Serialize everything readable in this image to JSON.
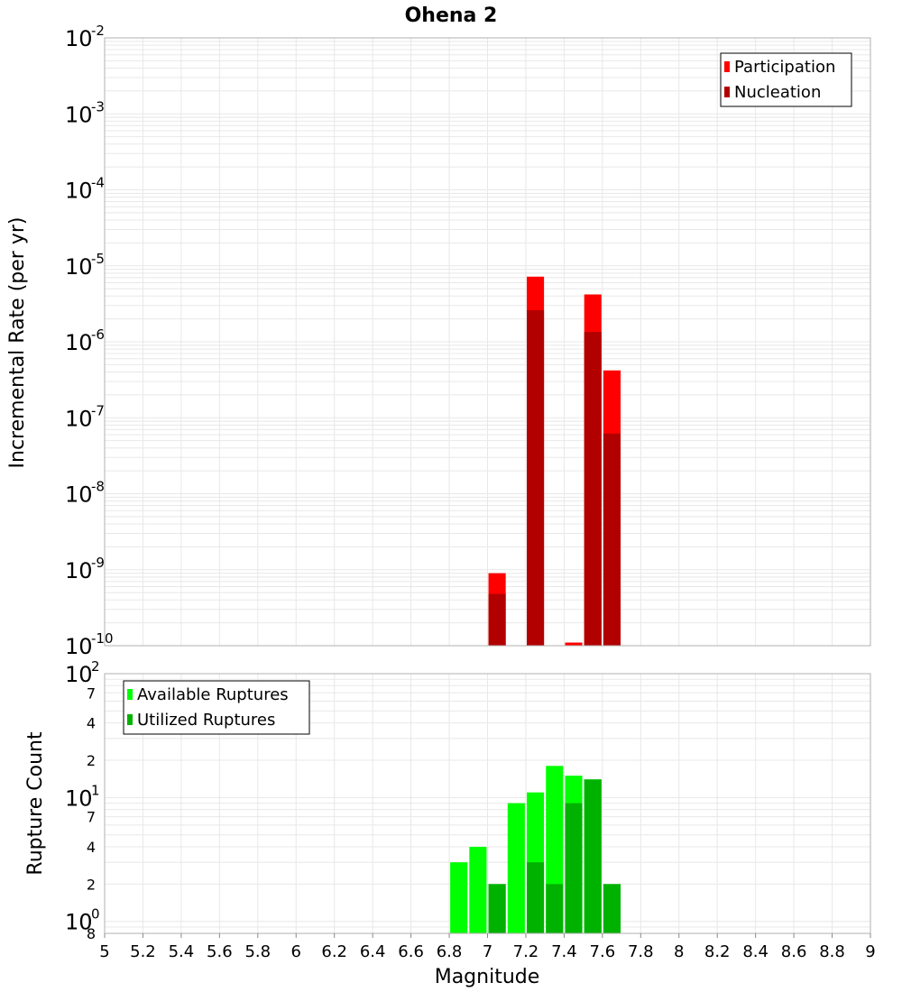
{
  "title": "Ohena 2",
  "colors": {
    "participation": "#ff0000",
    "nucleation": "#b20000",
    "available": "#00ff00",
    "utilized": "#00b200",
    "grid": "#e8e8e8",
    "frame": "#b0b0b0"
  },
  "chart_data": [
    {
      "type": "bar",
      "scale": "log",
      "ylabel": "Incremental Rate (per yr)",
      "ylim": [
        1e-10,
        0.01
      ],
      "xlim": [
        5,
        9
      ],
      "grid": true,
      "legend_position": "top-right",
      "y_ticks": [
        {
          "base": "10",
          "exp": "-2",
          "value": 0.01
        },
        {
          "base": "10",
          "exp": "-3",
          "value": 0.001
        },
        {
          "base": "10",
          "exp": "-4",
          "value": 0.0001
        },
        {
          "base": "10",
          "exp": "-5",
          "value": 1e-05
        },
        {
          "base": "10",
          "exp": "-6",
          "value": 1e-06
        },
        {
          "base": "10",
          "exp": "-7",
          "value": 1e-07
        },
        {
          "base": "10",
          "exp": "-8",
          "value": 1e-08
        },
        {
          "base": "10",
          "exp": "-9",
          "value": 1e-09
        },
        {
          "base": "10",
          "exp": "-10",
          "value": 1e-10
        }
      ],
      "series": [
        {
          "name": "Participation",
          "color": "#ff0000",
          "x": [
            7.05,
            7.25,
            7.45,
            7.55,
            7.65
          ],
          "values": [
            9e-10,
            7.2e-06,
            1.1e-10,
            4.2e-06,
            4.2e-07
          ]
        },
        {
          "name": "Nucleation",
          "color": "#b20000",
          "x": [
            7.05,
            7.25,
            7.55,
            7.65
          ],
          "values": [
            4.8e-10,
            2.6e-06,
            1.35e-06,
            6.2e-08
          ]
        }
      ]
    },
    {
      "type": "bar",
      "scale": "log",
      "ylabel": "Rupture Count",
      "xlabel": "Magnitude",
      "ylim": [
        0.8,
        100
      ],
      "xlim": [
        5,
        9
      ],
      "grid": true,
      "legend_position": "top-left",
      "x_ticks": [
        "5",
        "5.2",
        "5.4",
        "5.6",
        "5.8",
        "6",
        "6.2",
        "6.4",
        "6.6",
        "6.8",
        "7",
        "7.2",
        "7.4",
        "7.6",
        "7.8",
        "8",
        "8.2",
        "8.4",
        "8.6",
        "8.8",
        "9"
      ],
      "y_major_ticks": [
        {
          "base": "10",
          "exp": "2",
          "value": 100
        },
        {
          "base": "10",
          "exp": "1",
          "value": 10
        },
        {
          "base": "10",
          "exp": "0",
          "value": 1
        }
      ],
      "y_minor_ticks": [
        {
          "label": "7",
          "value": 70
        },
        {
          "label": "4",
          "value": 40
        },
        {
          "label": "2",
          "value": 20
        },
        {
          "label": "7",
          "value": 7
        },
        {
          "label": "4",
          "value": 4
        },
        {
          "label": "2",
          "value": 2
        },
        {
          "label": "8",
          "value": 0.8
        }
      ],
      "series": [
        {
          "name": "Available Ruptures",
          "color": "#00ff00",
          "x": [
            6.85,
            6.95,
            7.05,
            7.15,
            7.25,
            7.35,
            7.45,
            7.55,
            7.65
          ],
          "values": [
            3,
            4,
            2,
            9,
            11,
            18,
            15,
            14,
            2
          ]
        },
        {
          "name": "Utilized Ruptures",
          "color": "#00b200",
          "x": [
            7.05,
            7.25,
            7.35,
            7.45,
            7.55,
            7.65
          ],
          "values": [
            2,
            3,
            2,
            9,
            14,
            2
          ]
        }
      ]
    }
  ]
}
